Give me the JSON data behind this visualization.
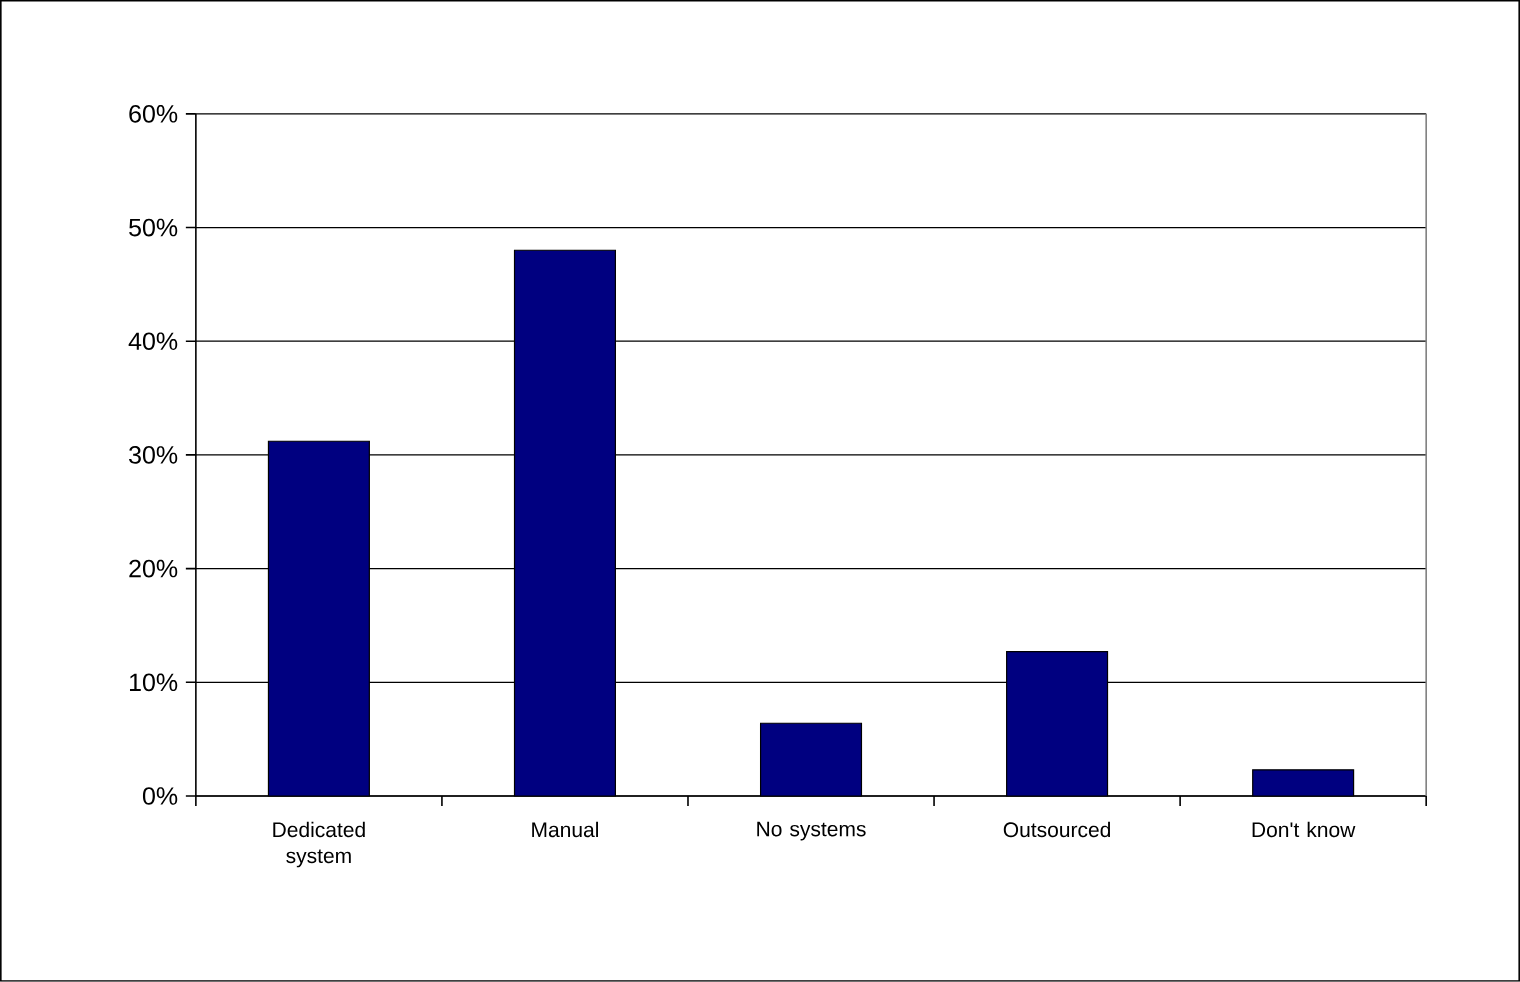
{
  "chart_data": {
    "type": "bar",
    "categories": [
      "Dedicated system",
      "Manual",
      "No systems",
      "Outsourced",
      "Don't know"
    ],
    "values": [
      31.2,
      48.0,
      6.4,
      12.7,
      2.3
    ],
    "color": "#000080",
    "ylim": [
      0,
      60
    ],
    "yticks": [
      {
        "value": 0,
        "label": "0%"
      },
      {
        "value": 10,
        "label": "10%"
      },
      {
        "value": 20,
        "label": "20%"
      },
      {
        "value": 30,
        "label": "30%"
      },
      {
        "value": 40,
        "label": "40%"
      },
      {
        "value": 50,
        "label": "50%"
      },
      {
        "value": 60,
        "label": "60%"
      }
    ],
    "grid": "y"
  }
}
